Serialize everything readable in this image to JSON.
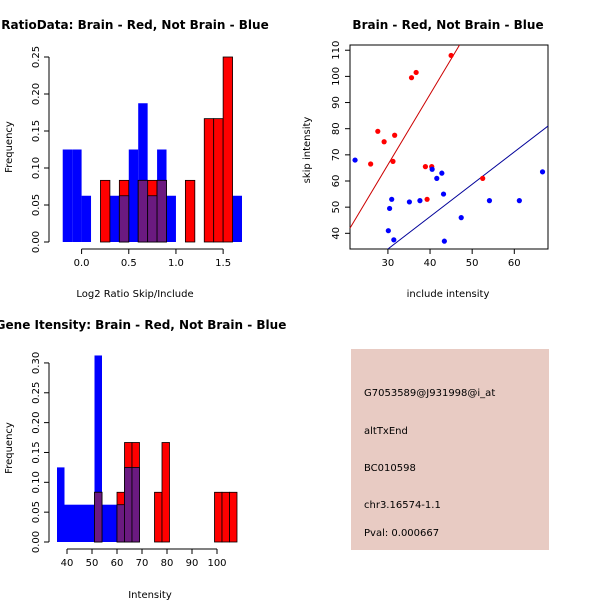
{
  "colors": {
    "red": "#ff0000",
    "blue": "#0000ff",
    "overlap": "#6b1a80",
    "info_bg": "#e8cbc3",
    "pval": "#c00000",
    "red_line": "#cc0000",
    "blue_line": "#000099"
  },
  "chart_data": [
    {
      "type": "bar",
      "title": "RatioData: Brain - Red, Not Brain - Blue",
      "xlabel": "Log2 Ratio Skip/Include",
      "ylabel": "Frequency",
      "xlim": [
        -0.25,
        1.7
      ],
      "ylim": [
        0,
        0.25
      ],
      "x_ticks": [
        "0.0",
        "0.5",
        "1.0",
        "1.5"
      ],
      "x_tick_values": [
        0,
        0.5,
        1.0,
        1.5
      ],
      "y_ticks": [
        "0.00",
        "0.05",
        "0.10",
        "0.15",
        "0.20",
        "0.25"
      ],
      "y_tick_values": [
        0,
        0.05,
        0.1,
        0.15,
        0.2,
        0.25
      ],
      "series": [
        {
          "name": "Not Brain",
          "color": "blue",
          "bins": [
            {
              "x0": -0.2,
              "x1": -0.1,
              "y": 0.125
            },
            {
              "x0": -0.1,
              "x1": 0.0,
              "y": 0.125
            },
            {
              "x0": 0.0,
              "x1": 0.1,
              "y": 0.0625
            },
            {
              "x0": 0.3,
              "x1": 0.4,
              "y": 0.0625
            },
            {
              "x0": 0.4,
              "x1": 0.5,
              "y": 0.0625
            },
            {
              "x0": 0.5,
              "x1": 0.6,
              "y": 0.125
            },
            {
              "x0": 0.6,
              "x1": 0.7,
              "y": 0.1875
            },
            {
              "x0": 0.7,
              "x1": 0.8,
              "y": 0.0625
            },
            {
              "x0": 0.8,
              "x1": 0.9,
              "y": 0.125
            },
            {
              "x0": 0.9,
              "x1": 1.0,
              "y": 0.0625
            },
            {
              "x0": 1.6,
              "x1": 1.7,
              "y": 0.0625
            }
          ]
        },
        {
          "name": "Brain",
          "color": "red",
          "bins": [
            {
              "x0": 0.2,
              "x1": 0.3,
              "y": 0.0833
            },
            {
              "x0": 0.4,
              "x1": 0.5,
              "y": 0.0833
            },
            {
              "x0": 0.6,
              "x1": 0.7,
              "y": 0.0833
            },
            {
              "x0": 0.7,
              "x1": 0.8,
              "y": 0.0833
            },
            {
              "x0": 0.8,
              "x1": 0.9,
              "y": 0.0833
            },
            {
              "x0": 1.1,
              "x1": 1.2,
              "y": 0.0833
            },
            {
              "x0": 1.3,
              "x1": 1.4,
              "y": 0.1667
            },
            {
              "x0": 1.4,
              "x1": 1.5,
              "y": 0.1667
            },
            {
              "x0": 1.5,
              "x1": 1.6,
              "y": 0.25
            }
          ]
        }
      ]
    },
    {
      "type": "scatter",
      "title": "Brain - Red, Not Brain - Blue",
      "xlabel": "include intensity",
      "ylabel": "skip intensity",
      "xlim": [
        21,
        68
      ],
      "ylim": [
        34,
        112
      ],
      "x_ticks": [
        "30",
        "40",
        "50",
        "60"
      ],
      "x_tick_values": [
        30,
        40,
        50,
        60
      ],
      "y_ticks": [
        "40",
        "50",
        "60",
        "70",
        "80",
        "90",
        "100",
        "110"
      ],
      "y_tick_values": [
        40,
        50,
        60,
        70,
        80,
        90,
        100,
        110
      ],
      "series": [
        {
          "name": "Brain",
          "color": "red",
          "x": [
            25.9,
            27.6,
            29.1,
            31.2,
            31.6,
            35.6,
            36.7,
            38.9,
            39.3,
            40.4,
            45,
            52.5
          ],
          "y": [
            66.5,
            79,
            75,
            67.5,
            77.5,
            99.5,
            101.5,
            65.5,
            53,
            65.5,
            108,
            61
          ]
        },
        {
          "name": "Not Brain",
          "color": "blue",
          "x": [
            22.2,
            30.1,
            30.4,
            30.9,
            31.4,
            35.1,
            37.6,
            40.5,
            41.6,
            42.8,
            43.2,
            43.4,
            47.4,
            54.1,
            61.2,
            66.7
          ],
          "y": [
            68,
            41,
            49.5,
            53,
            37.5,
            52,
            52.5,
            64.5,
            61,
            63,
            55,
            37,
            46,
            52.5,
            52.5,
            63.5
          ]
        }
      ],
      "lines": [
        {
          "color": "red_line",
          "x": [
            21,
            47
          ],
          "y": [
            42,
            112
          ]
        },
        {
          "color": "blue_line",
          "x": [
            30,
            68
          ],
          "y": [
            34,
            81
          ]
        }
      ]
    },
    {
      "type": "bar",
      "title": "Gene Itensity: Brain - Red, Not Brain - Blue",
      "xlabel": "Intensity",
      "ylabel": "Frequency",
      "xlim": [
        36,
        110
      ],
      "ylim": [
        0,
        0.32
      ],
      "x_ticks": [
        "40",
        "50",
        "60",
        "70",
        "80",
        "90",
        "100"
      ],
      "x_tick_values": [
        40,
        50,
        60,
        70,
        80,
        90,
        100
      ],
      "y_ticks": [
        "0.00",
        "0.05",
        "0.10",
        "0.15",
        "0.20",
        "0.25",
        "0.30"
      ],
      "y_tick_values": [
        0,
        0.05,
        0.1,
        0.15,
        0.2,
        0.25,
        0.3
      ],
      "series": [
        {
          "name": "Not Brain",
          "color": "blue",
          "bins": [
            {
              "x0": 36,
              "x1": 39,
              "y": 0.125
            },
            {
              "x0": 39,
              "x1": 42,
              "y": 0.0625
            },
            {
              "x0": 42,
              "x1": 45,
              "y": 0.0625
            },
            {
              "x0": 45,
              "x1": 48,
              "y": 0.0625
            },
            {
              "x0": 48,
              "x1": 51,
              "y": 0.0625
            },
            {
              "x0": 51,
              "x1": 54,
              "y": 0.3125
            },
            {
              "x0": 54,
              "x1": 57,
              "y": 0.0625
            },
            {
              "x0": 57,
              "x1": 60,
              "y": 0.0625
            },
            {
              "x0": 60,
              "x1": 63,
              "y": 0.0625
            },
            {
              "x0": 63,
              "x1": 66,
              "y": 0.125
            },
            {
              "x0": 66,
              "x1": 69,
              "y": 0.125
            }
          ]
        },
        {
          "name": "Brain",
          "color": "red",
          "bins": [
            {
              "x0": 51,
              "x1": 54,
              "y": 0.0833
            },
            {
              "x0": 60,
              "x1": 63,
              "y": 0.0833
            },
            {
              "x0": 63,
              "x1": 66,
              "y": 0.1667
            },
            {
              "x0": 66,
              "x1": 69,
              "y": 0.1667
            },
            {
              "x0": 75,
              "x1": 78,
              "y": 0.0833
            },
            {
              "x0": 78,
              "x1": 81,
              "y": 0.1667
            },
            {
              "x0": 99,
              "x1": 102,
              "y": 0.0833
            },
            {
              "x0": 102,
              "x1": 105,
              "y": 0.0833
            },
            {
              "x0": 105,
              "x1": 108,
              "y": 0.0833
            }
          ]
        }
      ]
    }
  ],
  "info": {
    "probe": "G7053589@J931998@i_at",
    "event": "altTxEnd",
    "accession": "BC010598",
    "location": "chr3.16574-1.1",
    "pval": "Pval: 0.000667"
  }
}
